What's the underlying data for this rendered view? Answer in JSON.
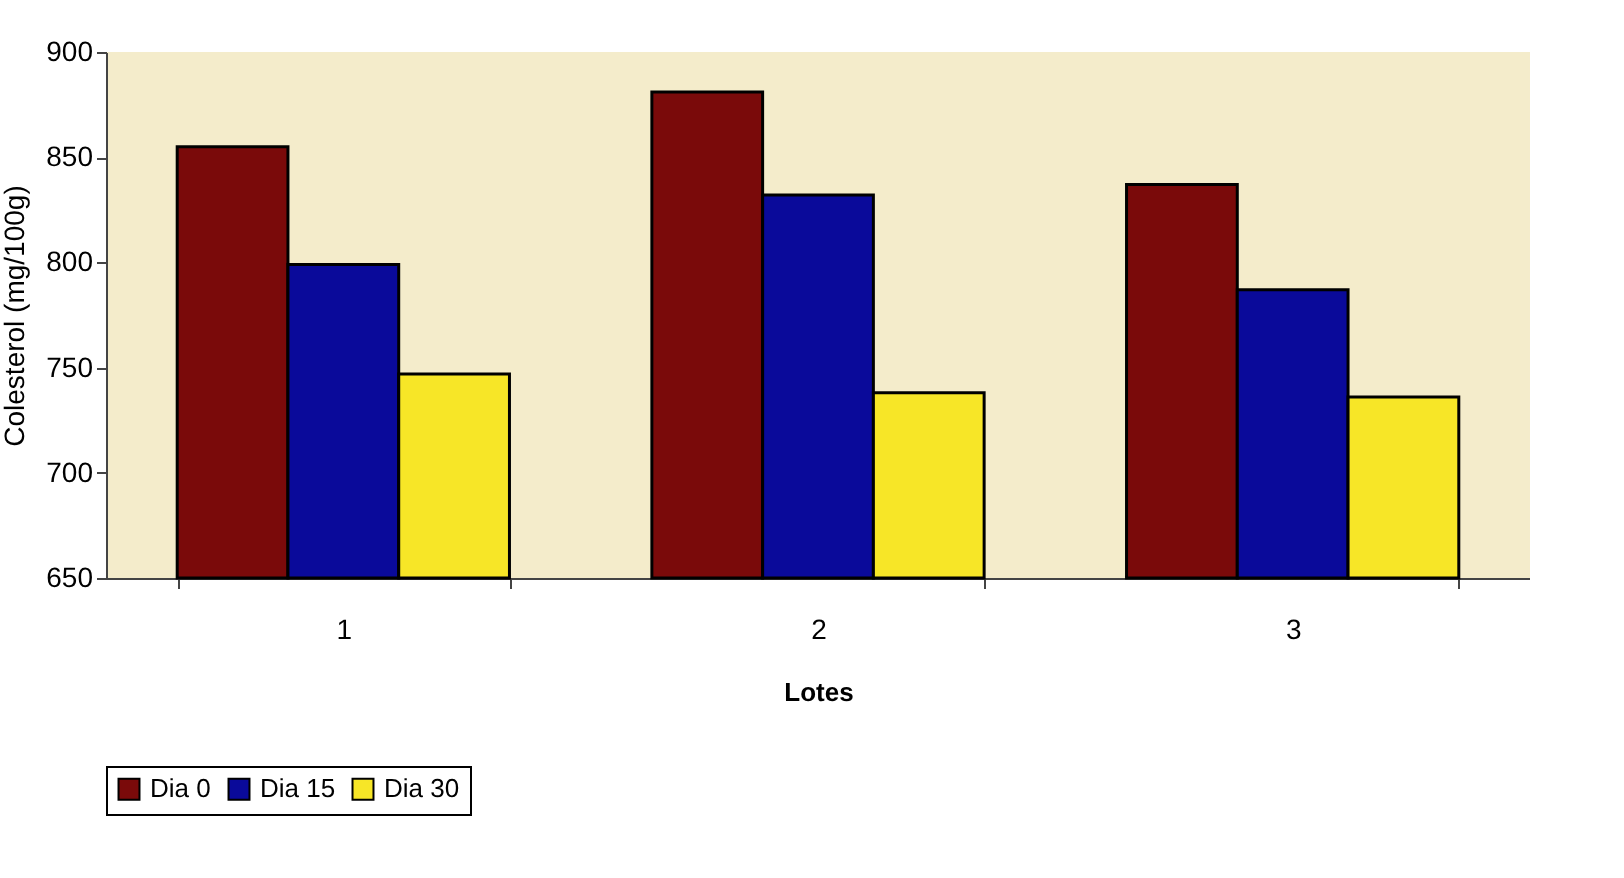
{
  "chart_data": {
    "type": "bar",
    "xlabel": "Lotes",
    "ylabel": "Colesterol (mg/100g)",
    "categories": [
      "1",
      "2",
      "3"
    ],
    "series": [
      {
        "name": "Dia 0",
        "color": "#7a0a0a",
        "values": [
          855,
          881,
          837
        ]
      },
      {
        "name": "Dia 15",
        "color": "#0a0a9a",
        "values": [
          799,
          832,
          787
        ]
      },
      {
        "name": "Dia 30",
        "color": "#f7e627",
        "values": [
          747,
          738,
          736
        ]
      }
    ],
    "ylim": [
      650,
      900
    ],
    "yticks": [
      650,
      700,
      750,
      800,
      850,
      900
    ],
    "grid": false,
    "legend": "bottom"
  }
}
